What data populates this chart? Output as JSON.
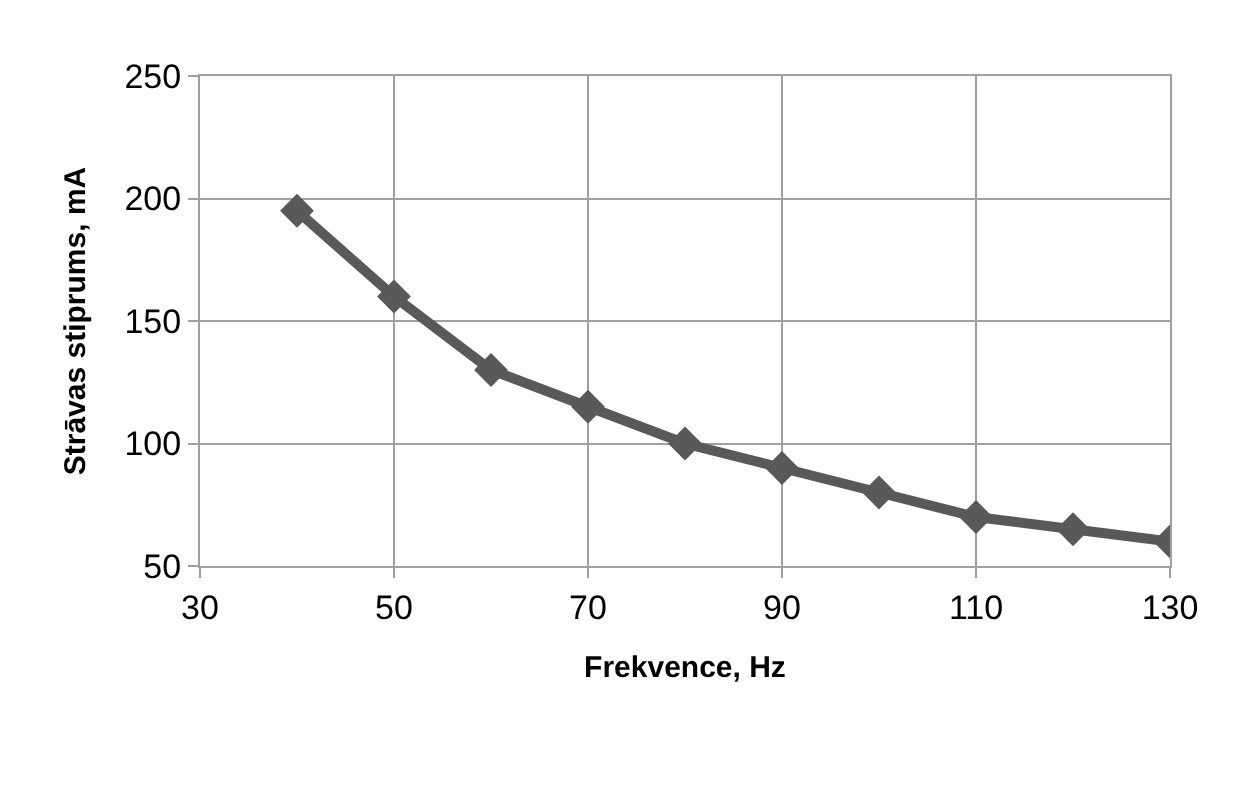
{
  "chart_data": {
    "type": "line",
    "xlabel": "Frekvence, Hz",
    "ylabel": "Strāvas stiprums, mA",
    "x": [
      40,
      50,
      60,
      70,
      80,
      90,
      100,
      110,
      120,
      130
    ],
    "series": [
      {
        "color": "#595959",
        "values": [
          195,
          160,
          130,
          115,
          100,
          90,
          80,
          70,
          65,
          60
        ]
      }
    ],
    "xlim": [
      30,
      130
    ],
    "xticks": [
      30,
      50,
      70,
      90,
      110,
      130
    ],
    "ylim": [
      50,
      250
    ],
    "yticks": [
      50,
      100,
      150,
      200,
      250
    ],
    "grid": true,
    "marker": "diamond",
    "line_style": "solid"
  }
}
